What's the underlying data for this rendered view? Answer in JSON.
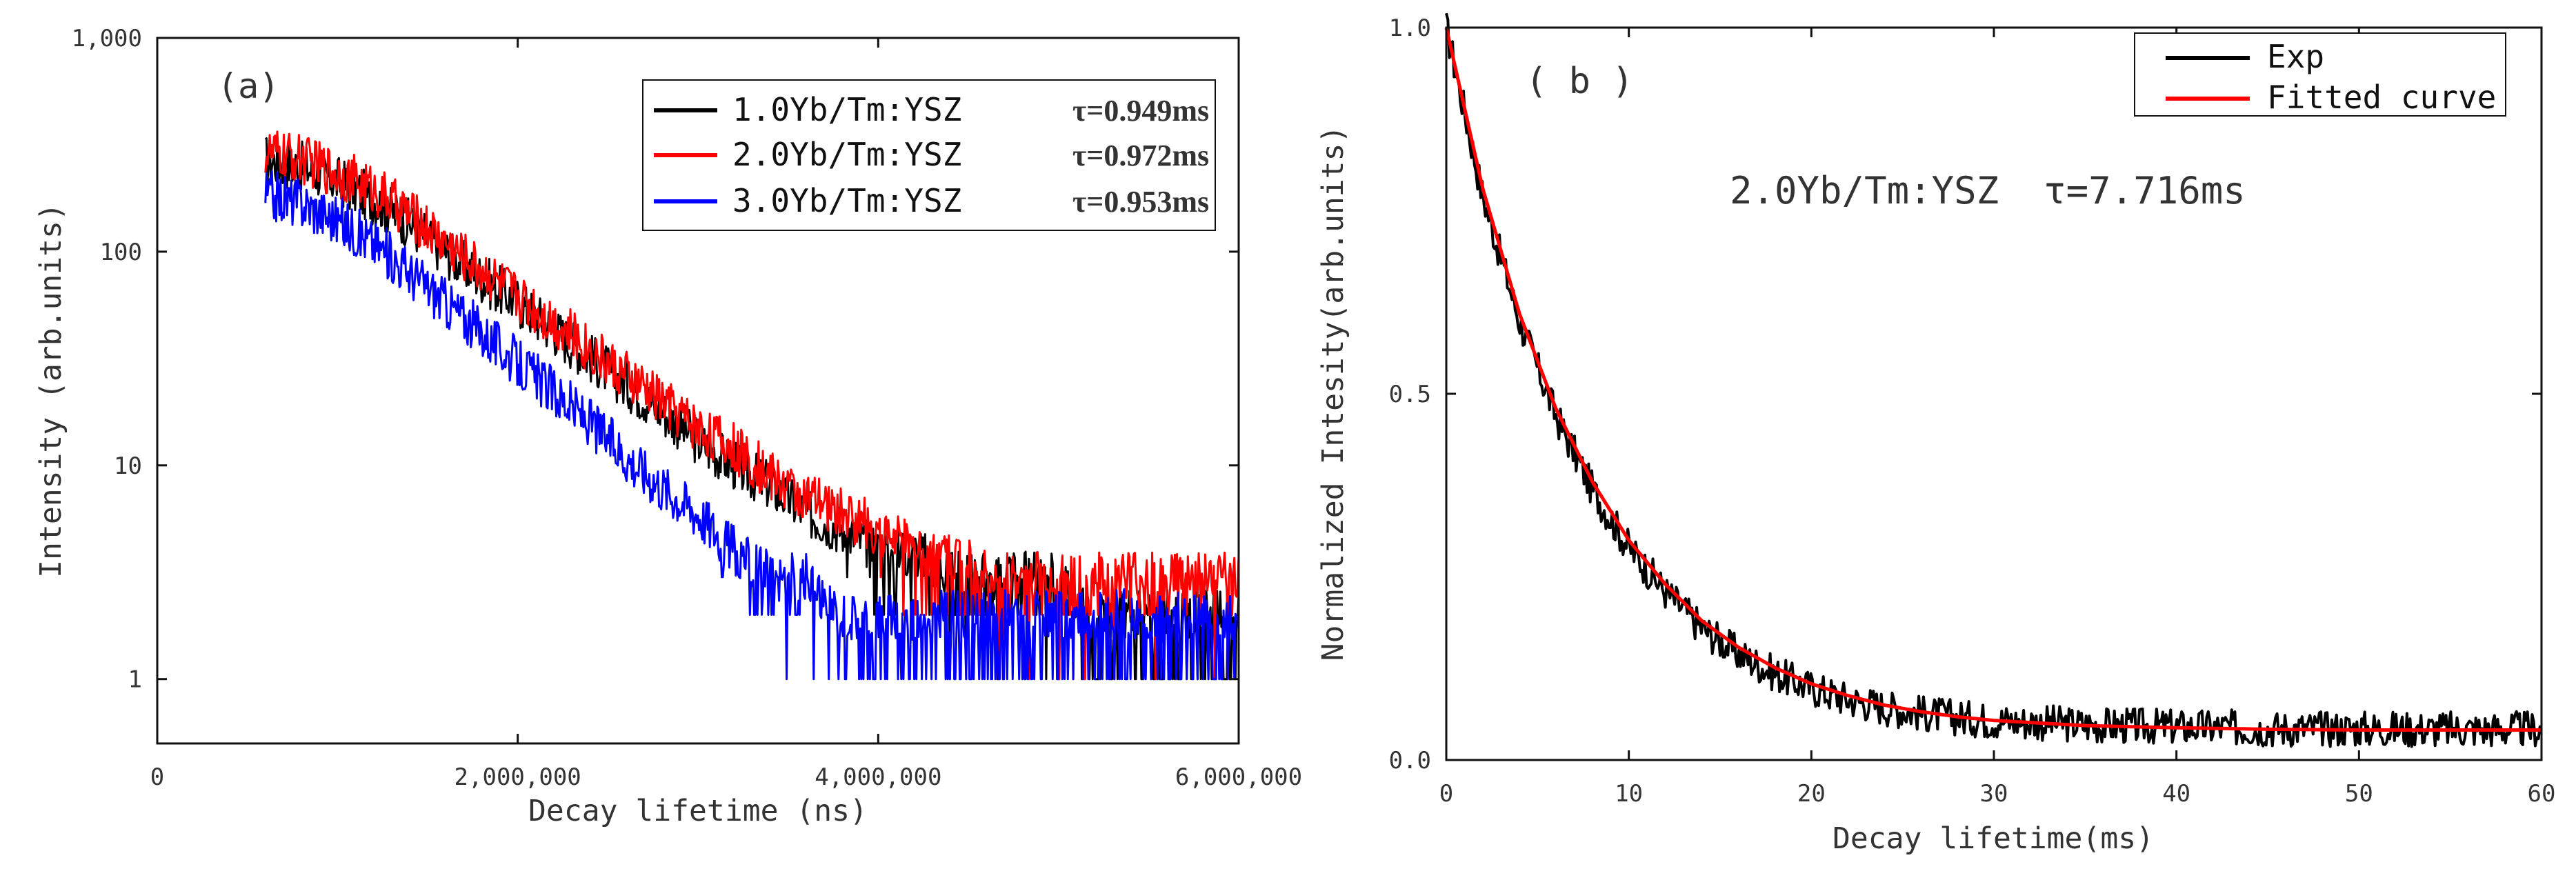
{
  "chart_data": [
    {
      "id": "a",
      "type": "line",
      "panel_label": "(a)",
      "xlabel": "Decay lifetime (ns)",
      "ylabel": "Intensity (arb.units)",
      "xlim": [
        0,
        6000000
      ],
      "ylim": [
        0.5,
        1000
      ],
      "yscale": "log",
      "x_ticks": [
        0,
        2000000,
        4000000,
        6000000
      ],
      "x_tick_labels": [
        "0",
        "2,000,000",
        "4,000,000",
        "6,000,000"
      ],
      "y_ticks": [
        1,
        10,
        100,
        1000
      ],
      "y_tick_labels": [
        "1",
        "10",
        "100",
        "1,000"
      ],
      "grid": false,
      "legend_position": "top-right",
      "series": [
        {
          "name": "1.0Yb/Tm:YSZ",
          "tau_label": "τ=0.949ms",
          "color": "#000000",
          "x": [
            600000,
            800000,
            1000000,
            1200000,
            1400000,
            1600000,
            1800000,
            2000000,
            2200000,
            2400000,
            2600000,
            2800000,
            3000000,
            3200000,
            3400000,
            3600000,
            3800000,
            4000000,
            4200000,
            4400000,
            4600000,
            4800000,
            5000000,
            5200000,
            5400000,
            5600000,
            5800000,
            6000000
          ],
          "y": [
            270,
            250,
            215,
            175,
            135,
            100,
            75,
            58,
            43,
            32,
            24,
            18,
            13,
            10,
            8,
            6,
            5,
            4,
            4,
            3,
            3,
            3,
            3,
            2,
            2,
            2,
            2,
            2
          ]
        },
        {
          "name": "2.0Yb/Tm:YSZ",
          "tau_label": "τ=0.972ms",
          "color": "#ff0000",
          "x": [
            600000,
            800000,
            1000000,
            1200000,
            1400000,
            1600000,
            1800000,
            2000000,
            2200000,
            2400000,
            2600000,
            2800000,
            3000000,
            3200000,
            3400000,
            3600000,
            3800000,
            4000000,
            4200000,
            4400000,
            4600000,
            4800000,
            5000000,
            5200000,
            5400000,
            5600000,
            5800000,
            6000000
          ],
          "y": [
            290,
            270,
            235,
            195,
            150,
            110,
            82,
            62,
            47,
            35,
            26,
            20,
            15,
            12,
            9,
            7,
            6,
            5,
            4,
            4,
            3,
            3,
            3,
            3,
            3,
            3,
            3,
            3
          ]
        },
        {
          "name": "3.0Yb/Tm:YSZ",
          "tau_label": "τ=0.953ms",
          "color": "#0000ff",
          "x": [
            600000,
            800000,
            1000000,
            1200000,
            1400000,
            1600000,
            1800000,
            2000000,
            2200000,
            2400000,
            2600000,
            2800000,
            3000000,
            3200000,
            3400000,
            3600000,
            3800000,
            4000000,
            4200000,
            4400000,
            4600000,
            4800000,
            5000000,
            5200000,
            5400000,
            5600000,
            5800000,
            6000000
          ],
          "y": [
            185,
            170,
            140,
            110,
            80,
            58,
            42,
            30,
            22,
            16,
            11,
            8,
            6,
            4,
            3,
            3,
            2,
            2,
            2,
            2,
            2,
            2,
            2,
            2,
            2,
            2,
            2,
            2
          ]
        }
      ]
    },
    {
      "id": "b",
      "type": "line",
      "panel_label": "( b )",
      "xlabel": "Decay lifetime(ms)",
      "ylabel": "Normalized Intesity(arb.units)",
      "xlim": [
        0,
        60
      ],
      "ylim": [
        0,
        1
      ],
      "yscale": "linear",
      "x_ticks": [
        0,
        10,
        20,
        30,
        40,
        50,
        60
      ],
      "x_tick_labels": [
        "0",
        "10",
        "20",
        "30",
        "40",
        "50",
        "60"
      ],
      "y_ticks": [
        0,
        0.5,
        1
      ],
      "y_tick_labels": [
        "0.0",
        "0.5",
        "1.0"
      ],
      "grid": false,
      "legend_position": "top-right",
      "annotation": "2.0Yb/Tm:YSZ  τ=7.716ms",
      "series": [
        {
          "name": "Exp",
          "color": "#000000",
          "x": [
            0,
            2,
            4,
            6,
            8,
            10,
            12,
            14,
            16,
            18,
            20,
            22,
            24,
            26,
            28,
            30,
            35,
            40,
            45,
            50,
            55,
            60
          ],
          "y": [
            1.0,
            0.77,
            0.6,
            0.47,
            0.37,
            0.29,
            0.23,
            0.18,
            0.145,
            0.118,
            0.098,
            0.083,
            0.072,
            0.064,
            0.058,
            0.054,
            0.048,
            0.045,
            0.043,
            0.043,
            0.042,
            0.042
          ]
        },
        {
          "name": "Fitted curve",
          "color": "#ff0000",
          "x": [
            0,
            2,
            4,
            6,
            8,
            10,
            12,
            14,
            16,
            18,
            20,
            22,
            24,
            26,
            28,
            30,
            35,
            40,
            45,
            50,
            55,
            60
          ],
          "y": [
            1.0,
            0.78,
            0.61,
            0.48,
            0.38,
            0.3,
            0.24,
            0.19,
            0.154,
            0.126,
            0.104,
            0.088,
            0.075,
            0.066,
            0.059,
            0.054,
            0.047,
            0.044,
            0.042,
            0.041,
            0.041,
            0.041
          ]
        }
      ]
    }
  ]
}
